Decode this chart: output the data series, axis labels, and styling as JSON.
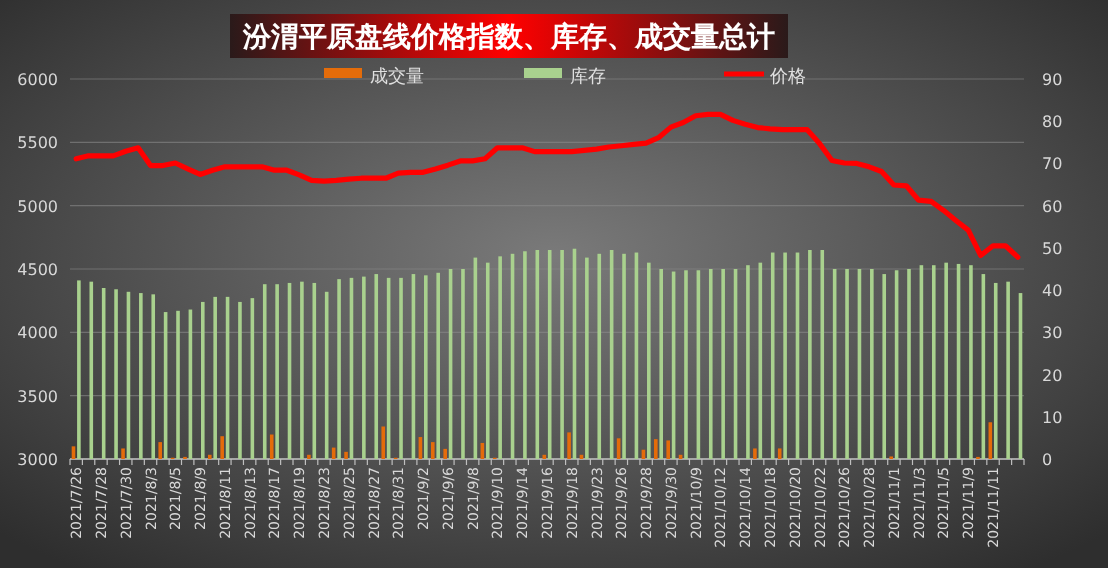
{
  "chart_data": {
    "type": "bar",
    "title": "汾渭平原盘线价格指数、库存、成交量总计",
    "categories": [
      "2021/7/26",
      null,
      "2021/7/28",
      null,
      "2021/7/30",
      null,
      "2021/8/3",
      null,
      "2021/8/5",
      null,
      "2021/8/9",
      null,
      "2021/8/11",
      null,
      "2021/8/13",
      null,
      "2021/8/17",
      null,
      "2021/8/19",
      null,
      "2021/8/23",
      null,
      "2021/8/25",
      null,
      "2021/8/27",
      null,
      "2021/8/31",
      null,
      "2021/9/2",
      null,
      "2021/9/6",
      null,
      "2021/9/8",
      null,
      "2021/9/10",
      null,
      "2021/9/14",
      null,
      "2021/9/16",
      null,
      "2021/9/18",
      null,
      "2021/9/23",
      null,
      "2021/9/26",
      null,
      "2021/9/28",
      null,
      "2021/9/30",
      null,
      "2021/10/9",
      null,
      "2021/10/12",
      null,
      "2021/10/14",
      null,
      "2021/10/18",
      null,
      "2021/10/20",
      null,
      "2021/10/22",
      null,
      "2021/10/26",
      null,
      "2021/10/28",
      null,
      "2021/11/1",
      null,
      "2021/11/3",
      null,
      "2021/11/5",
      null,
      "2021/11/9",
      null,
      "2021/11/11",
      null,
      null
    ],
    "series": [
      {
        "name": "成交量",
        "type": "bar",
        "axis": "y2",
        "color": "#e46c0a",
        "values": [
          3,
          null,
          null,
          null,
          2.5,
          null,
          null,
          4,
          0.3,
          0.5,
          null,
          1,
          5.4,
          null,
          null,
          null,
          5.8,
          null,
          null,
          1,
          null,
          2.7,
          1.7,
          null,
          null,
          7.7,
          0.3,
          null,
          5.2,
          4,
          2.4,
          null,
          null,
          3.8,
          0.3,
          null,
          null,
          null,
          1,
          null,
          6.3,
          1,
          null,
          null,
          4.9,
          null,
          2.2,
          4.7,
          4.4,
          1,
          null,
          null,
          null,
          null,
          null,
          2.5,
          null,
          2.5,
          null,
          null,
          null,
          null,
          null,
          null,
          null,
          null,
          0.6,
          null,
          null,
          null,
          null,
          null,
          null,
          0.5,
          8.7,
          null,
          null
        ]
      },
      {
        "name": "库存",
        "color": "#a9d18e",
        "values": [
          4410,
          4400,
          4350,
          4340,
          4320,
          4310,
          4300,
          4160,
          4170,
          4180,
          4240,
          4280,
          4280,
          4240,
          4270,
          4380,
          4380,
          4390,
          4400,
          4390,
          4320,
          4420,
          4430,
          4440,
          4460,
          4430,
          4430,
          4460,
          4450,
          4470,
          4500,
          4500,
          4590,
          4550,
          4600,
          4620,
          4640,
          4650,
          4650,
          4650,
          4660,
          4590,
          4620,
          4650,
          4620,
          4630,
          4550,
          4500,
          4480,
          4490,
          4490,
          4500,
          4500,
          4500,
          4530,
          4550,
          4630,
          4630,
          4630,
          4650,
          4650,
          4500,
          4500,
          4500,
          4500,
          4460,
          4490,
          4500,
          4530,
          4530,
          4550,
          4540,
          4530,
          4460,
          4390,
          4400,
          4310
        ]
      },
      {
        "name": "价格",
        "type": "line",
        "axis": "y2",
        "color": "#ff0000",
        "values": [
          71.1,
          71.8,
          71.8,
          71.8,
          72.9,
          73.7,
          69.5,
          69.5,
          70.1,
          68.7,
          67.4,
          68.4,
          69.2,
          69.2,
          69.2,
          69.2,
          68.4,
          68.4,
          67.3,
          66,
          65.8,
          66,
          66.3,
          66.5,
          66.5,
          66.5,
          67.7,
          67.9,
          67.9,
          68.7,
          69.6,
          70.6,
          70.6,
          71.1,
          73.7,
          73.7,
          73.7,
          72.8,
          72.8,
          72.8,
          72.8,
          73.1,
          73.4,
          73.9,
          74.2,
          74.5,
          74.8,
          76.1,
          78.6,
          79.7,
          81.3,
          81.6,
          81.6,
          80.2,
          79.3,
          78.5,
          78.2,
          78,
          78,
          78,
          74.7,
          70.7,
          70.1,
          70,
          69.2,
          68.1,
          64.9,
          64.7,
          61.3,
          61,
          58.9,
          56.5,
          54.2,
          48.2,
          50.5,
          50.5,
          47.8
        ]
      }
    ],
    "ylim": [
      3000,
      6000
    ],
    "yticks": [
      3000,
      3500,
      4000,
      4500,
      5000,
      5500,
      6000
    ],
    "y2lim": [
      0,
      90
    ],
    "y2ticks": [
      0,
      10,
      20,
      30,
      40,
      50,
      60,
      70,
      80,
      90
    ],
    "grid": "y",
    "legend": "top"
  }
}
